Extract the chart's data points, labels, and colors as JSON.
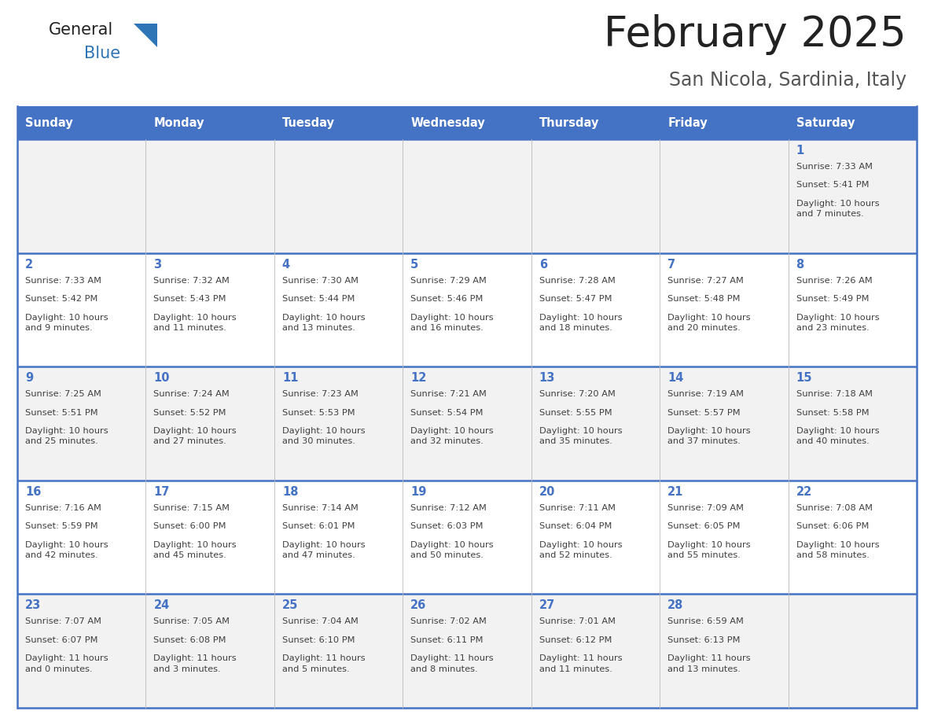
{
  "title": "February 2025",
  "subtitle": "San Nicola, Sardinia, Italy",
  "header_bg": "#4472C4",
  "header_text": "#FFFFFF",
  "cell_bg_odd": "#F2F2F2",
  "cell_bg_even": "#FFFFFF",
  "day_number_color": "#4472C4",
  "text_color": "#404040",
  "border_color": "#4472C4",
  "days_of_week": [
    "Sunday",
    "Monday",
    "Tuesday",
    "Wednesday",
    "Thursday",
    "Friday",
    "Saturday"
  ],
  "weeks": [
    [
      {
        "day": "",
        "sunrise": "",
        "sunset": "",
        "daylight": ""
      },
      {
        "day": "",
        "sunrise": "",
        "sunset": "",
        "daylight": ""
      },
      {
        "day": "",
        "sunrise": "",
        "sunset": "",
        "daylight": ""
      },
      {
        "day": "",
        "sunrise": "",
        "sunset": "",
        "daylight": ""
      },
      {
        "day": "",
        "sunrise": "",
        "sunset": "",
        "daylight": ""
      },
      {
        "day": "",
        "sunrise": "",
        "sunset": "",
        "daylight": ""
      },
      {
        "day": "1",
        "sunrise": "7:33 AM",
        "sunset": "5:41 PM",
        "daylight": "10 hours\nand 7 minutes."
      }
    ],
    [
      {
        "day": "2",
        "sunrise": "7:33 AM",
        "sunset": "5:42 PM",
        "daylight": "10 hours\nand 9 minutes."
      },
      {
        "day": "3",
        "sunrise": "7:32 AM",
        "sunset": "5:43 PM",
        "daylight": "10 hours\nand 11 minutes."
      },
      {
        "day": "4",
        "sunrise": "7:30 AM",
        "sunset": "5:44 PM",
        "daylight": "10 hours\nand 13 minutes."
      },
      {
        "day": "5",
        "sunrise": "7:29 AM",
        "sunset": "5:46 PM",
        "daylight": "10 hours\nand 16 minutes."
      },
      {
        "day": "6",
        "sunrise": "7:28 AM",
        "sunset": "5:47 PM",
        "daylight": "10 hours\nand 18 minutes."
      },
      {
        "day": "7",
        "sunrise": "7:27 AM",
        "sunset": "5:48 PM",
        "daylight": "10 hours\nand 20 minutes."
      },
      {
        "day": "8",
        "sunrise": "7:26 AM",
        "sunset": "5:49 PM",
        "daylight": "10 hours\nand 23 minutes."
      }
    ],
    [
      {
        "day": "9",
        "sunrise": "7:25 AM",
        "sunset": "5:51 PM",
        "daylight": "10 hours\nand 25 minutes."
      },
      {
        "day": "10",
        "sunrise": "7:24 AM",
        "sunset": "5:52 PM",
        "daylight": "10 hours\nand 27 minutes."
      },
      {
        "day": "11",
        "sunrise": "7:23 AM",
        "sunset": "5:53 PM",
        "daylight": "10 hours\nand 30 minutes."
      },
      {
        "day": "12",
        "sunrise": "7:21 AM",
        "sunset": "5:54 PM",
        "daylight": "10 hours\nand 32 minutes."
      },
      {
        "day": "13",
        "sunrise": "7:20 AM",
        "sunset": "5:55 PM",
        "daylight": "10 hours\nand 35 minutes."
      },
      {
        "day": "14",
        "sunrise": "7:19 AM",
        "sunset": "5:57 PM",
        "daylight": "10 hours\nand 37 minutes."
      },
      {
        "day": "15",
        "sunrise": "7:18 AM",
        "sunset": "5:58 PM",
        "daylight": "10 hours\nand 40 minutes."
      }
    ],
    [
      {
        "day": "16",
        "sunrise": "7:16 AM",
        "sunset": "5:59 PM",
        "daylight": "10 hours\nand 42 minutes."
      },
      {
        "day": "17",
        "sunrise": "7:15 AM",
        "sunset": "6:00 PM",
        "daylight": "10 hours\nand 45 minutes."
      },
      {
        "day": "18",
        "sunrise": "7:14 AM",
        "sunset": "6:01 PM",
        "daylight": "10 hours\nand 47 minutes."
      },
      {
        "day": "19",
        "sunrise": "7:12 AM",
        "sunset": "6:03 PM",
        "daylight": "10 hours\nand 50 minutes."
      },
      {
        "day": "20",
        "sunrise": "7:11 AM",
        "sunset": "6:04 PM",
        "daylight": "10 hours\nand 52 minutes."
      },
      {
        "day": "21",
        "sunrise": "7:09 AM",
        "sunset": "6:05 PM",
        "daylight": "10 hours\nand 55 minutes."
      },
      {
        "day": "22",
        "sunrise": "7:08 AM",
        "sunset": "6:06 PM",
        "daylight": "10 hours\nand 58 minutes."
      }
    ],
    [
      {
        "day": "23",
        "sunrise": "7:07 AM",
        "sunset": "6:07 PM",
        "daylight": "11 hours\nand 0 minutes."
      },
      {
        "day": "24",
        "sunrise": "7:05 AM",
        "sunset": "6:08 PM",
        "daylight": "11 hours\nand 3 minutes."
      },
      {
        "day": "25",
        "sunrise": "7:04 AM",
        "sunset": "6:10 PM",
        "daylight": "11 hours\nand 5 minutes."
      },
      {
        "day": "26",
        "sunrise": "7:02 AM",
        "sunset": "6:11 PM",
        "daylight": "11 hours\nand 8 minutes."
      },
      {
        "day": "27",
        "sunrise": "7:01 AM",
        "sunset": "6:12 PM",
        "daylight": "11 hours\nand 11 minutes."
      },
      {
        "day": "28",
        "sunrise": "6:59 AM",
        "sunset": "6:13 PM",
        "daylight": "11 hours\nand 13 minutes."
      },
      {
        "day": "",
        "sunrise": "",
        "sunset": "",
        "daylight": ""
      }
    ]
  ]
}
